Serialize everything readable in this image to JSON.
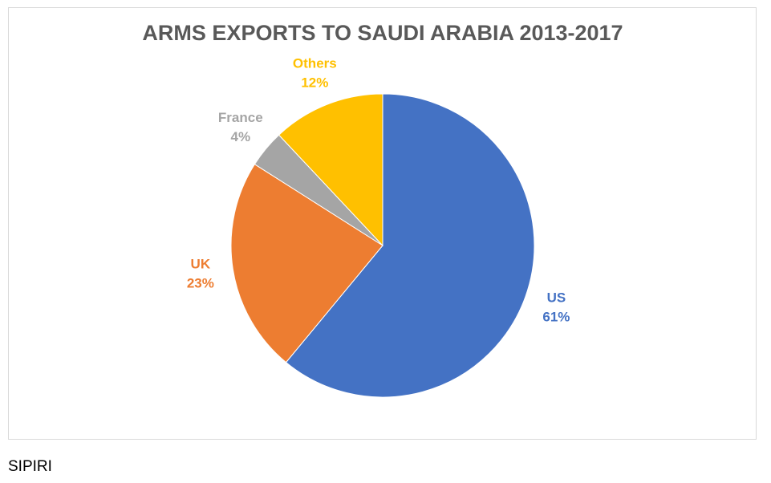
{
  "chart_data": {
    "type": "pie",
    "title": "ARMS EXPORTS TO SAUDI ARABIA 2013-2017",
    "categories": [
      "US",
      "UK",
      "France",
      "Others"
    ],
    "values": [
      61,
      23,
      4,
      12
    ],
    "value_labels": [
      "61%",
      "23%",
      "4%",
      "12%"
    ],
    "colors": [
      "#4472c4",
      "#ed7d31",
      "#a5a5a5",
      "#ffc000"
    ]
  },
  "source": "SIPIRI"
}
